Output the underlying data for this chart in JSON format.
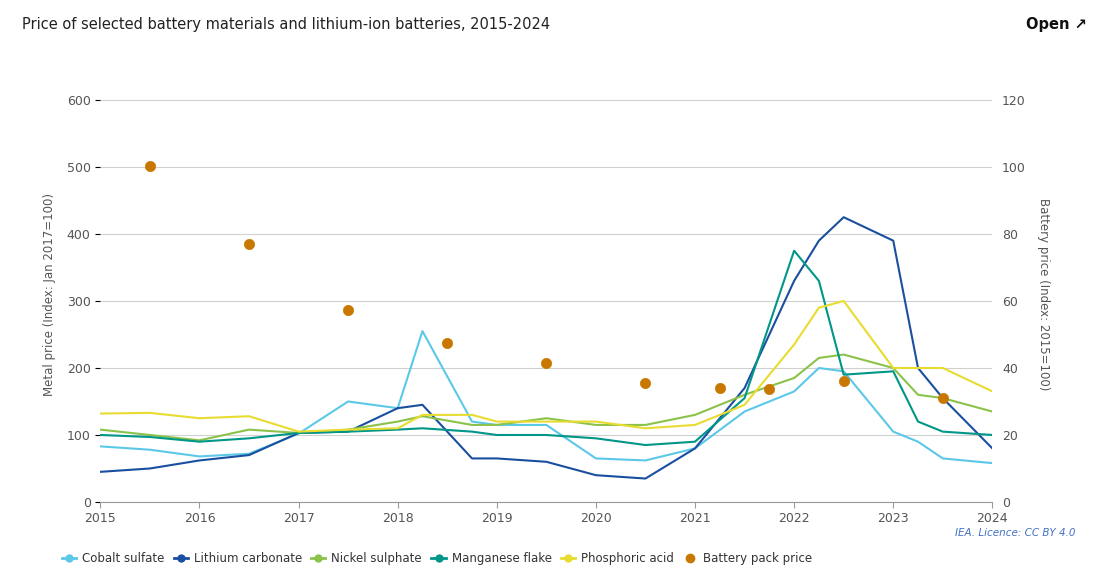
{
  "title": "Price of selected battery materials and lithium-ion batteries, 2015-2024",
  "ylabel_left": "Metal price (Index: Jan 2017=100)",
  "ylabel_right": "Battery price (Index: 2015=100)",
  "ylim_left": [
    0,
    620
  ],
  "ylim_right": [
    0,
    124
  ],
  "background_color": "#ffffff",
  "grid_color": "#d0d0d0",
  "years": [
    2015,
    2015.5,
    2016,
    2016.5,
    2017,
    2017.5,
    2018,
    2018.25,
    2018.75,
    2019,
    2019.5,
    2020,
    2020.5,
    2021,
    2021.5,
    2022,
    2022.25,
    2022.5,
    2023,
    2023.25,
    2023.5,
    2024
  ],
  "cobalt_sulfate": [
    83,
    78,
    68,
    72,
    102,
    150,
    140,
    255,
    120,
    115,
    115,
    65,
    62,
    80,
    135,
    165,
    200,
    195,
    105,
    90,
    65,
    58
  ],
  "lithium_carbonate": [
    45,
    50,
    62,
    70,
    103,
    105,
    140,
    145,
    65,
    65,
    60,
    40,
    35,
    80,
    170,
    330,
    390,
    425,
    390,
    200,
    155,
    80
  ],
  "nickel_sulphate": [
    108,
    100,
    92,
    108,
    103,
    108,
    120,
    128,
    115,
    115,
    125,
    115,
    115,
    130,
    160,
    185,
    215,
    220,
    200,
    160,
    155,
    135
  ],
  "manganese_flake": [
    100,
    97,
    90,
    95,
    103,
    105,
    108,
    110,
    105,
    100,
    100,
    95,
    85,
    90,
    155,
    375,
    330,
    190,
    195,
    120,
    105,
    100
  ],
  "phosphoric_acid": [
    132,
    133,
    125,
    128,
    105,
    108,
    110,
    130,
    130,
    120,
    120,
    120,
    110,
    115,
    145,
    235,
    290,
    300,
    200,
    200,
    200,
    165
  ],
  "battery_pack_x": [
    2015.5,
    2016.5,
    2017.5,
    2018.5,
    2019.5,
    2020.5,
    2021.25,
    2021.75,
    2022.5,
    2023.5
  ],
  "battery_pack_y": [
    502,
    385,
    286,
    238,
    207,
    178,
    170,
    168,
    180,
    155
  ],
  "cobalt_color": "#5bc8e8",
  "lithium_color": "#1a4fa0",
  "nickel_color": "#8bc34a",
  "manganese_color": "#009688",
  "phosphoric_color": "#e8dc30",
  "battery_color": "#c87800",
  "iea_text": "IEA. Licence: CC BY 4.0",
  "open_text": "Open ↗",
  "left_yticks": [
    0,
    100,
    200,
    300,
    400,
    500,
    600
  ],
  "right_yticks": [
    0,
    20,
    40,
    60,
    80,
    100,
    120
  ],
  "xticks": [
    2015,
    2016,
    2017,
    2018,
    2019,
    2020,
    2021,
    2022,
    2023,
    2024
  ]
}
